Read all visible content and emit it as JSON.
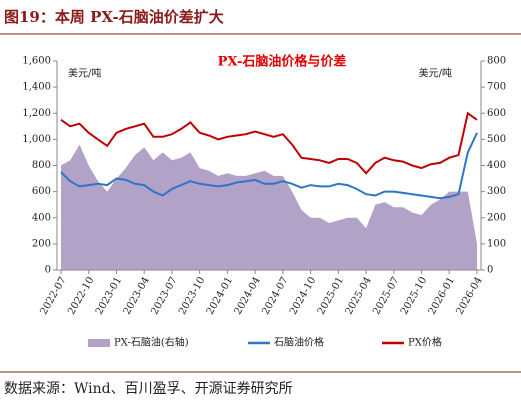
{
  "figure_title": "图19：本周 PX-石脑油价差扩大",
  "source": "数据来源：Wind、百川盈孚、开源证券研究所",
  "chart_data": {
    "type": "line",
    "title": "PX-石脑油价格与价差",
    "ylabel": "美元/吨",
    "y2label": "美元/吨",
    "categories": [
      "2022-07",
      null,
      null,
      "2022-10",
      null,
      null,
      "2023-01",
      null,
      null,
      "2023-04",
      null,
      null,
      "2023-07",
      null,
      null,
      "2023-10",
      null,
      null,
      "2024-01",
      null,
      null,
      "2024-04",
      null,
      null,
      "2024-07",
      null,
      null,
      "2024-10",
      null,
      null,
      "2025-01",
      null,
      null,
      "2025-04",
      null,
      null,
      "2025-07",
      null,
      null,
      "2025-10",
      null,
      null,
      "2026-01",
      null,
      null,
      "2026-04"
    ],
    "series": [
      {
        "name": "PX-石脑油(右轴)",
        "color": "#b3a2c7",
        "axis": "y2",
        "style": "area",
        "values": [
          400,
          420,
          480,
          400,
          340,
          300,
          350,
          390,
          440,
          470,
          420,
          450,
          420,
          430,
          450,
          390,
          380,
          360,
          370,
          360,
          360,
          370,
          380,
          360,
          360,
          300,
          230,
          200,
          200,
          180,
          190,
          200,
          200,
          160,
          250,
          260,
          240,
          240,
          220,
          210,
          250,
          270,
          300,
          300,
          300,
          100
        ]
      },
      {
        "name": "石脑油价格",
        "color": "#2e75c6",
        "style": "line",
        "values": [
          750,
          680,
          640,
          650,
          660,
          650,
          700,
          690,
          660,
          650,
          600,
          570,
          620,
          650,
          680,
          660,
          650,
          640,
          650,
          670,
          680,
          690,
          660,
          660,
          680,
          660,
          630,
          650,
          640,
          640,
          660,
          650,
          620,
          580,
          570,
          600,
          600,
          590,
          580,
          570,
          560,
          550,
          560,
          580,
          900,
          1050
        ]
      },
      {
        "name": "PX价格",
        "color": "#c00000",
        "style": "line",
        "values": [
          1150,
          1100,
          1120,
          1050,
          1000,
          950,
          1050,
          1080,
          1100,
          1120,
          1020,
          1020,
          1040,
          1080,
          1130,
          1050,
          1030,
          1000,
          1020,
          1030,
          1040,
          1060,
          1040,
          1020,
          1040,
          960,
          860,
          850,
          840,
          820,
          850,
          850,
          820,
          740,
          820,
          860,
          840,
          830,
          800,
          780,
          810,
          820,
          860,
          880,
          1200,
          1150
        ]
      }
    ],
    "ylim": [
      0,
      1600
    ],
    "yticks": [
      0,
      200,
      400,
      600,
      800,
      {
        "value": 1000,
        "label": "1,000"
      },
      {
        "value": 1200,
        "label": "1,200"
      },
      {
        "value": 1400,
        "label": "1,400"
      },
      {
        "value": 1600,
        "label": "1,600"
      }
    ],
    "y2lim": [
      0,
      800
    ],
    "y2ticks": [
      0,
      100,
      200,
      300,
      400,
      500,
      600,
      700,
      800
    ]
  }
}
